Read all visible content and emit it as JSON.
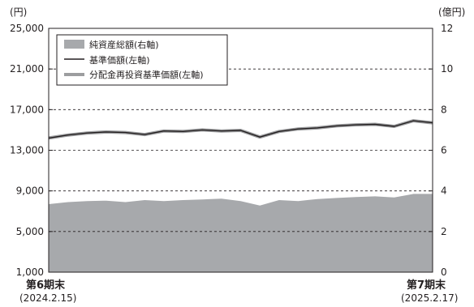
{
  "chart_data": {
    "type": "area",
    "left_axis": {
      "unit": "(円)",
      "ticks": [
        "25,000",
        "21,000",
        "17,000",
        "13,000",
        "9,000",
        "5,000",
        "1,000"
      ],
      "ylim": [
        1000,
        25000
      ]
    },
    "right_axis": {
      "unit": "(億円)",
      "ticks": [
        "12",
        "10",
        "8",
        "6",
        "4",
        "2",
        "0"
      ],
      "ylim": [
        0,
        12
      ]
    },
    "x_labels": [
      {
        "period": "第6期末",
        "date": "(2024.2.15)"
      },
      {
        "period": "第7期末",
        "date": "(2025.2.17)"
      }
    ],
    "legend": [
      {
        "label": "純資産総額(右軸)",
        "color": "#a7a9ac",
        "kind": "area"
      },
      {
        "label": "基準価額(左軸)",
        "color": "#231f20",
        "kind": "line"
      },
      {
        "label": "分配金再投資基準価額(左軸)",
        "color": "#9c9d9f",
        "kind": "thickline"
      }
    ],
    "grid": "dashed horizontal at left-axis ticks",
    "x": [
      0,
      0.05,
      0.1,
      0.15,
      0.2,
      0.25,
      0.3,
      0.35,
      0.4,
      0.45,
      0.5,
      0.55,
      0.6,
      0.65,
      0.7,
      0.75,
      0.8,
      0.85,
      0.9,
      0.95,
      1
    ],
    "series": [
      {
        "name": "純資産総額(右軸)",
        "axis": "right",
        "color": "#a7a9ac",
        "values": [
          3.35,
          3.45,
          3.5,
          3.52,
          3.45,
          3.55,
          3.5,
          3.55,
          3.58,
          3.62,
          3.5,
          3.28,
          3.55,
          3.5,
          3.6,
          3.65,
          3.7,
          3.73,
          3.68,
          3.85,
          3.85
        ]
      },
      {
        "name": "基準価額(左軸)",
        "axis": "left",
        "color": "#231f20",
        "values": [
          14200,
          14500,
          14700,
          14800,
          14750,
          14550,
          14900,
          14850,
          15000,
          14900,
          14950,
          14300,
          14850,
          15100,
          15200,
          15400,
          15500,
          15550,
          15350,
          15900,
          15700
        ]
      },
      {
        "name": "分配金再投資基準価額(左軸)",
        "axis": "left",
        "color": "#9c9d9f",
        "values": [
          14200,
          14500,
          14700,
          14800,
          14750,
          14550,
          14900,
          14850,
          15000,
          14900,
          14950,
          14300,
          14850,
          15100,
          15200,
          15400,
          15500,
          15550,
          15350,
          15900,
          15700
        ]
      }
    ]
  }
}
